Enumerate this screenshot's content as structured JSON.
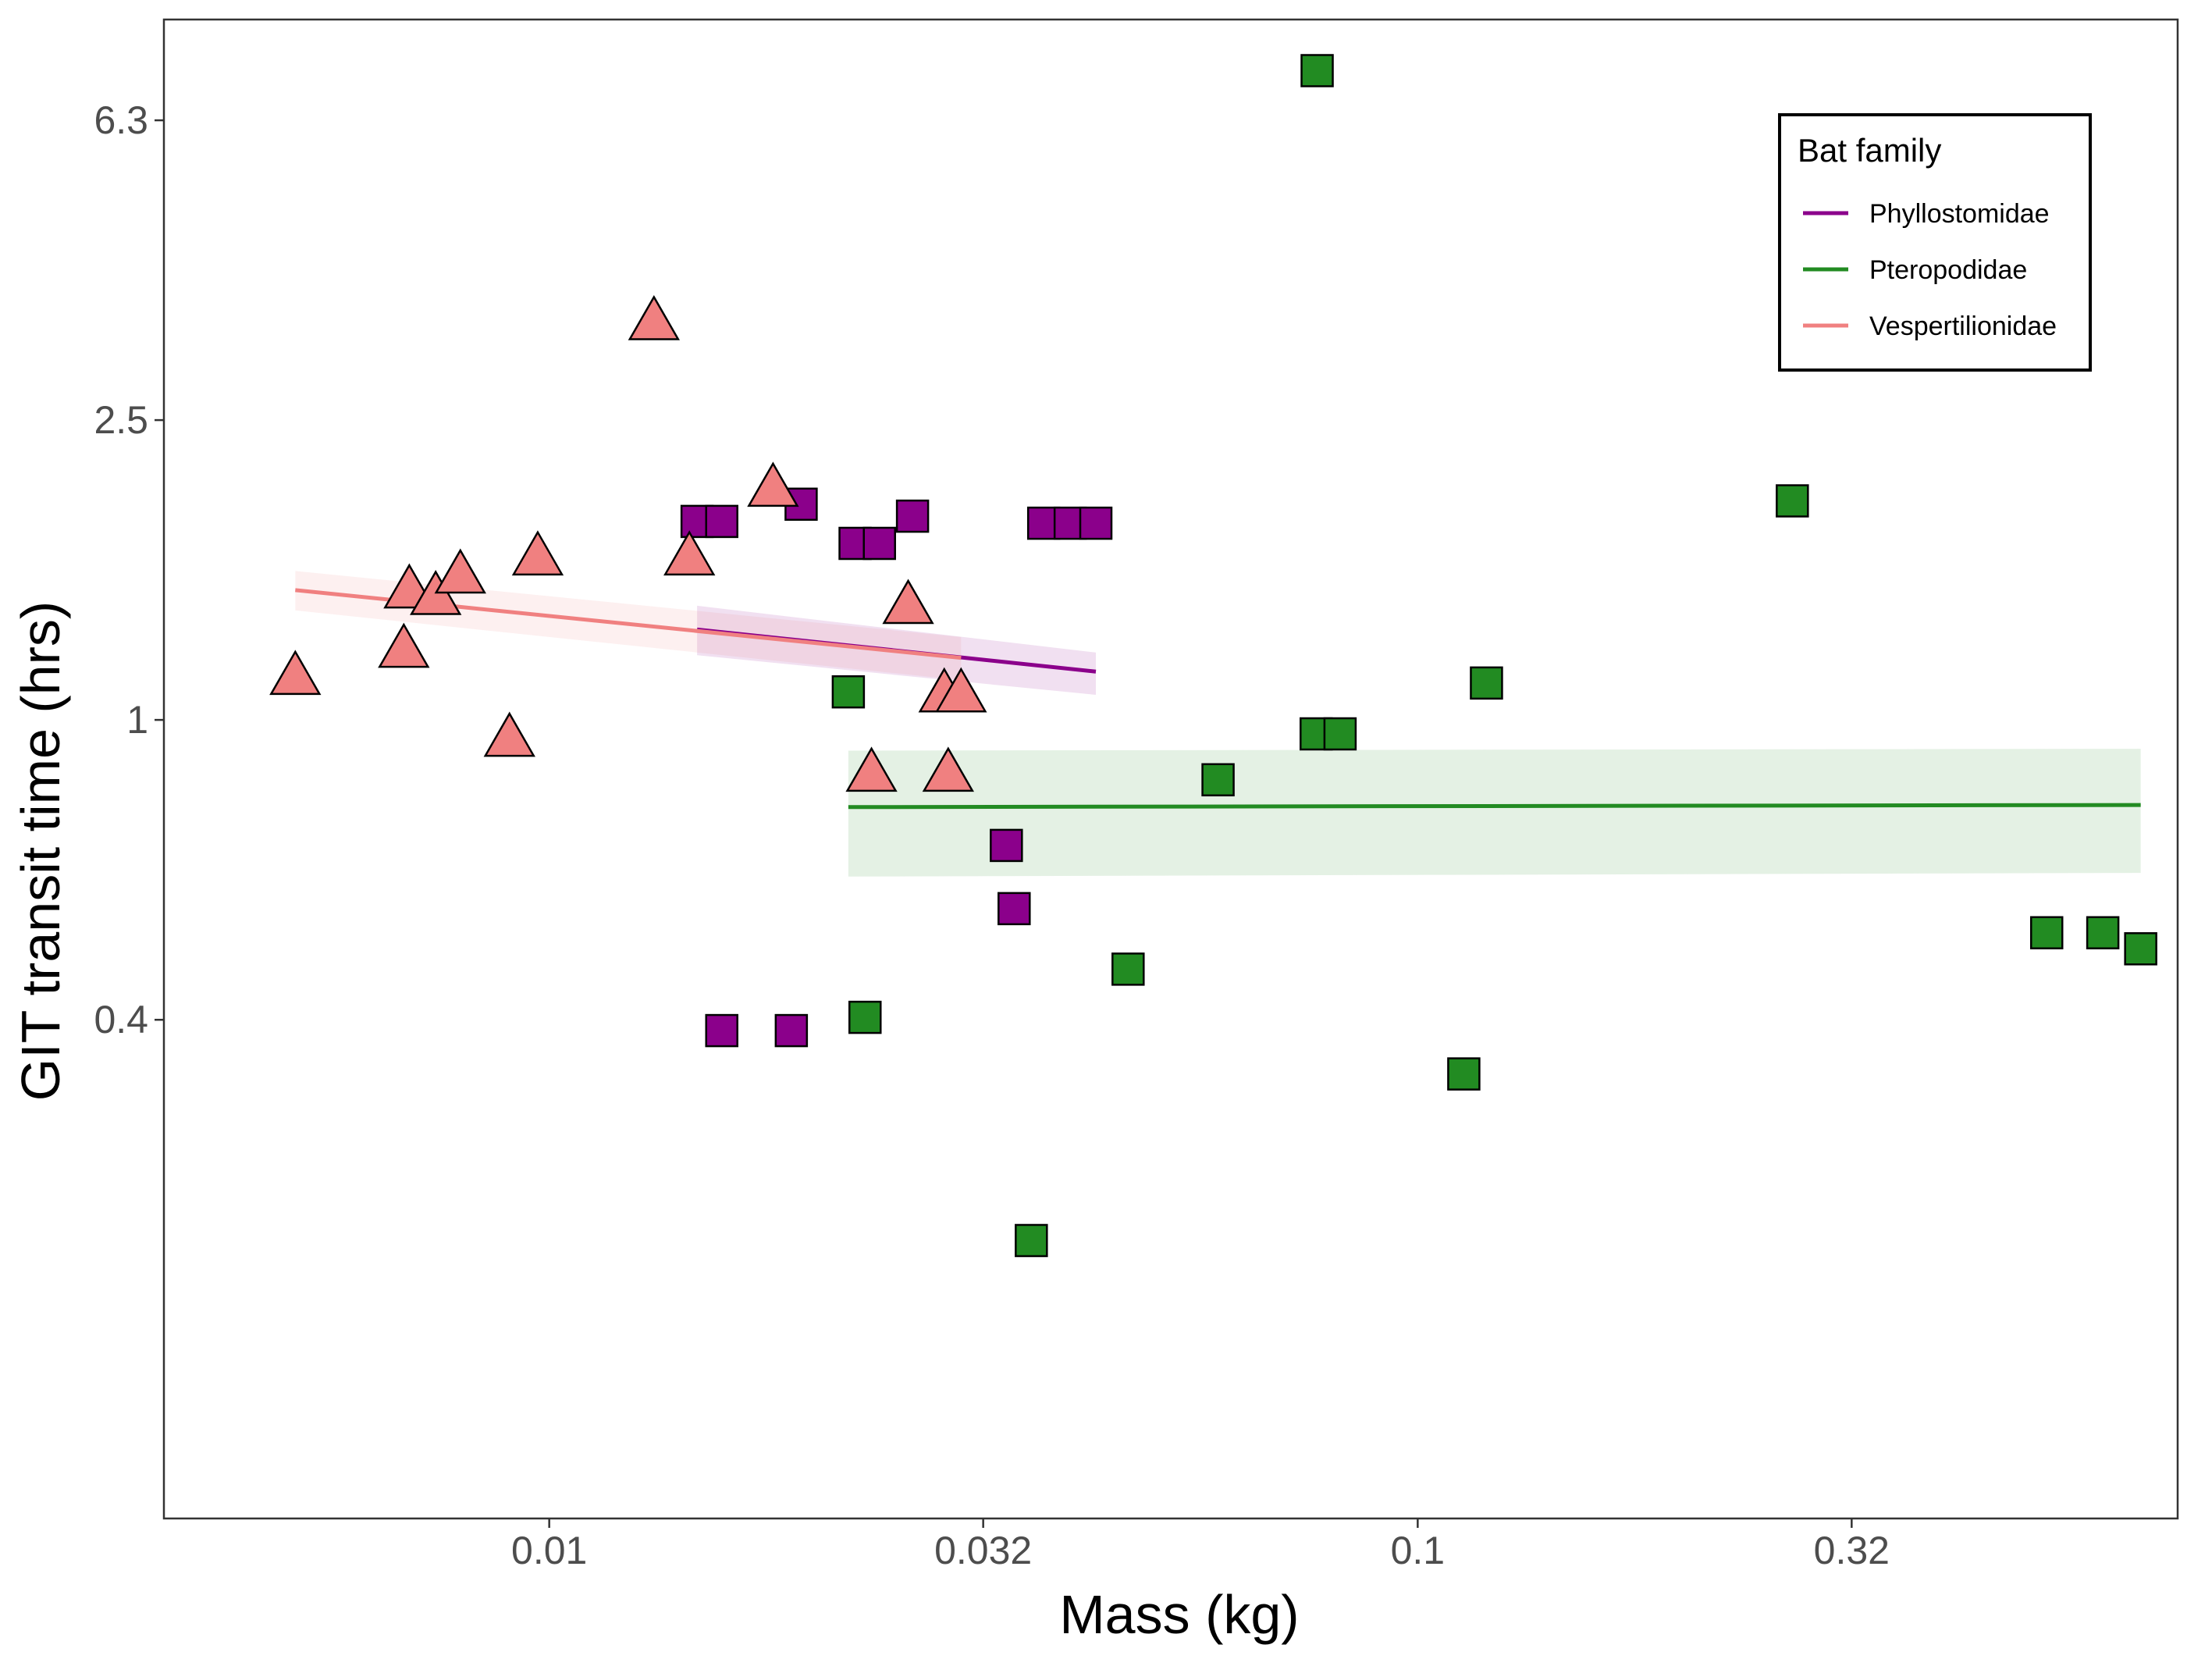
{
  "chart_data": {
    "type": "scatter",
    "title": "",
    "xlabel": "Mass (kg)",
    "ylabel": "GIT transit time (hrs)",
    "x_scale": "log10",
    "y_scale": "log10",
    "xlim": [
      0.0036,
      0.75
    ],
    "ylim": [
      0.086,
      8.6
    ],
    "x_ticks": [
      0.01,
      0.0316,
      0.1,
      0.316
    ],
    "x_tick_labels": [
      "0.01",
      "0.032",
      "0.1",
      "0.32"
    ],
    "y_ticks": [
      0.398,
      1.0,
      2.512,
      6.31
    ],
    "y_tick_labels": [
      "0.4",
      "1",
      "2.5",
      "6.3"
    ],
    "legend": {
      "title": "Bat family",
      "position": "top-right",
      "entries": [
        {
          "label": "Phyllostomidae",
          "color": "#8b008b",
          "shape": "square"
        },
        {
          "label": "Pteropodidae",
          "color": "#228b22",
          "shape": "square"
        },
        {
          "label": "Vespertilionidae",
          "color": "#f08080",
          "shape": "triangle"
        }
      ]
    },
    "series": [
      {
        "name": "Phyllostomidae",
        "color": "#8b008b",
        "shape": "square",
        "points": [
          [
            0.0148,
            1.84
          ],
          [
            0.0158,
            1.84
          ],
          [
            0.0195,
            1.94
          ],
          [
            0.0225,
            1.72
          ],
          [
            0.024,
            1.72
          ],
          [
            0.0262,
            1.87
          ],
          [
            0.0371,
            1.83
          ],
          [
            0.0398,
            1.83
          ],
          [
            0.0426,
            1.83
          ],
          [
            0.0336,
            0.68
          ],
          [
            0.0343,
            0.56
          ],
          [
            0.0158,
            0.385
          ],
          [
            0.019,
            0.385
          ]
        ],
        "fit": {
          "x": [
            0.0148,
            0.0426
          ],
          "y": [
            1.32,
            1.16
          ],
          "band": [
            [
              1.42,
              1.23
            ],
            [
              1.22,
              1.08
            ]
          ]
        }
      },
      {
        "name": "Pteropodidae",
        "color": "#228b22",
        "shape": "square",
        "points": [
          [
            0.0766,
            7.35
          ],
          [
            0.0221,
            1.09
          ],
          [
            0.0231,
            0.401
          ],
          [
            0.0359,
            0.202
          ],
          [
            0.0464,
            0.465
          ],
          [
            0.0589,
            0.832
          ],
          [
            0.0764,
            0.958
          ],
          [
            0.0814,
            0.958
          ],
          [
            0.12,
            1.12
          ],
          [
            0.113,
            0.337
          ],
          [
            0.27,
            1.96
          ],
          [
            0.53,
            0.52
          ],
          [
            0.615,
            0.52
          ],
          [
            0.68,
            0.495
          ]
        ],
        "fit": {
          "x": [
            0.0221,
            0.68
          ],
          "y": [
            0.765,
            0.77
          ],
          "band": [
            [
              0.91,
              0.915
            ],
            [
              0.618,
              0.625
            ]
          ]
        }
      },
      {
        "name": "Vespertilionidae",
        "color": "#f08080",
        "shape": "triangle",
        "points": [
          [
            0.0051,
            1.15
          ],
          [
            0.0068,
            1.25
          ],
          [
            0.0069,
            1.5
          ],
          [
            0.0074,
            1.47
          ],
          [
            0.0079,
            1.57
          ],
          [
            0.009,
            0.951
          ],
          [
            0.0097,
            1.66
          ],
          [
            0.0132,
            3.42
          ],
          [
            0.0145,
            1.66
          ],
          [
            0.0181,
            2.05
          ],
          [
            0.0235,
            0.854
          ],
          [
            0.0259,
            1.43
          ],
          [
            0.0285,
            1.09
          ],
          [
            0.0288,
            0.854
          ],
          [
            0.0298,
            1.09
          ]
        ],
        "fit": {
          "x": [
            0.0051,
            0.0298
          ],
          "y": [
            1.49,
            1.21
          ],
          "band": [
            [
              1.58,
              1.29
            ],
            [
              1.4,
              1.13
            ]
          ]
        }
      }
    ]
  }
}
